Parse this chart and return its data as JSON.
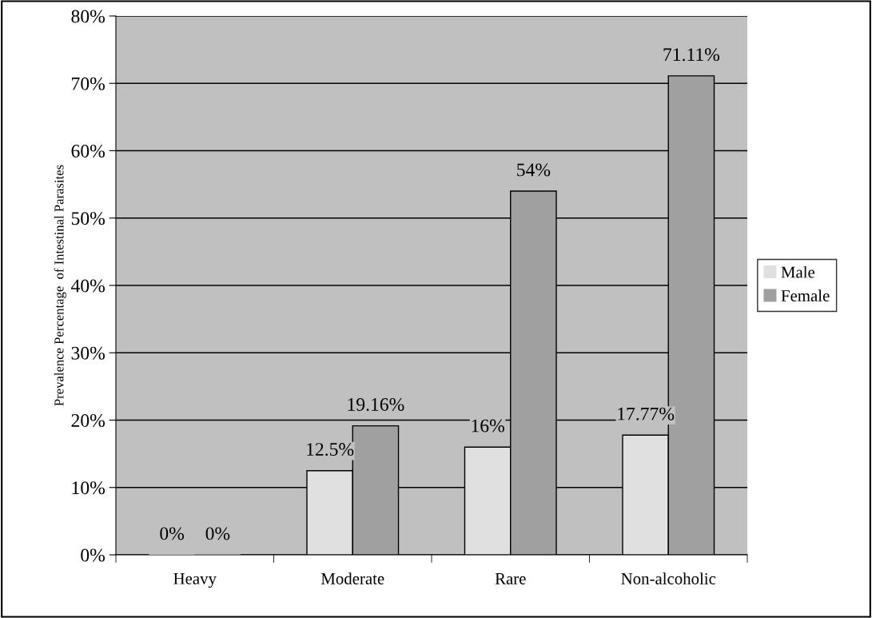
{
  "chart_data": {
    "type": "bar",
    "ylabel": "Prevalence Percentage  of Intestinal Parasites",
    "categories": [
      "Heavy",
      "Moderate",
      "Rare",
      "Non-alcoholic"
    ],
    "series": [
      {
        "name": "Male",
        "color": "#e0e0e0",
        "values": [
          0,
          12.5,
          16,
          17.77
        ],
        "value_labels": [
          "0%",
          "12.5%",
          "16%",
          "17.77%"
        ]
      },
      {
        "name": "Female",
        "color": "#a0a0a0",
        "values": [
          0,
          19.16,
          54,
          71.11
        ],
        "value_labels": [
          "0%",
          "19.16%",
          "54%",
          "71.11%"
        ]
      }
    ],
    "ylim": [
      0,
      80
    ],
    "yticks": [
      {
        "value": 0,
        "label": "0%"
      },
      {
        "value": 10,
        "label": "10%"
      },
      {
        "value": 20,
        "label": "20%"
      },
      {
        "value": 30,
        "label": "30%"
      },
      {
        "value": 40,
        "label": "40%"
      },
      {
        "value": 50,
        "label": "50%"
      },
      {
        "value": 60,
        "label": "60%"
      },
      {
        "value": 70,
        "label": "70%"
      },
      {
        "value": 80,
        "label": "80%"
      }
    ],
    "grid": "y",
    "legend": "right"
  }
}
